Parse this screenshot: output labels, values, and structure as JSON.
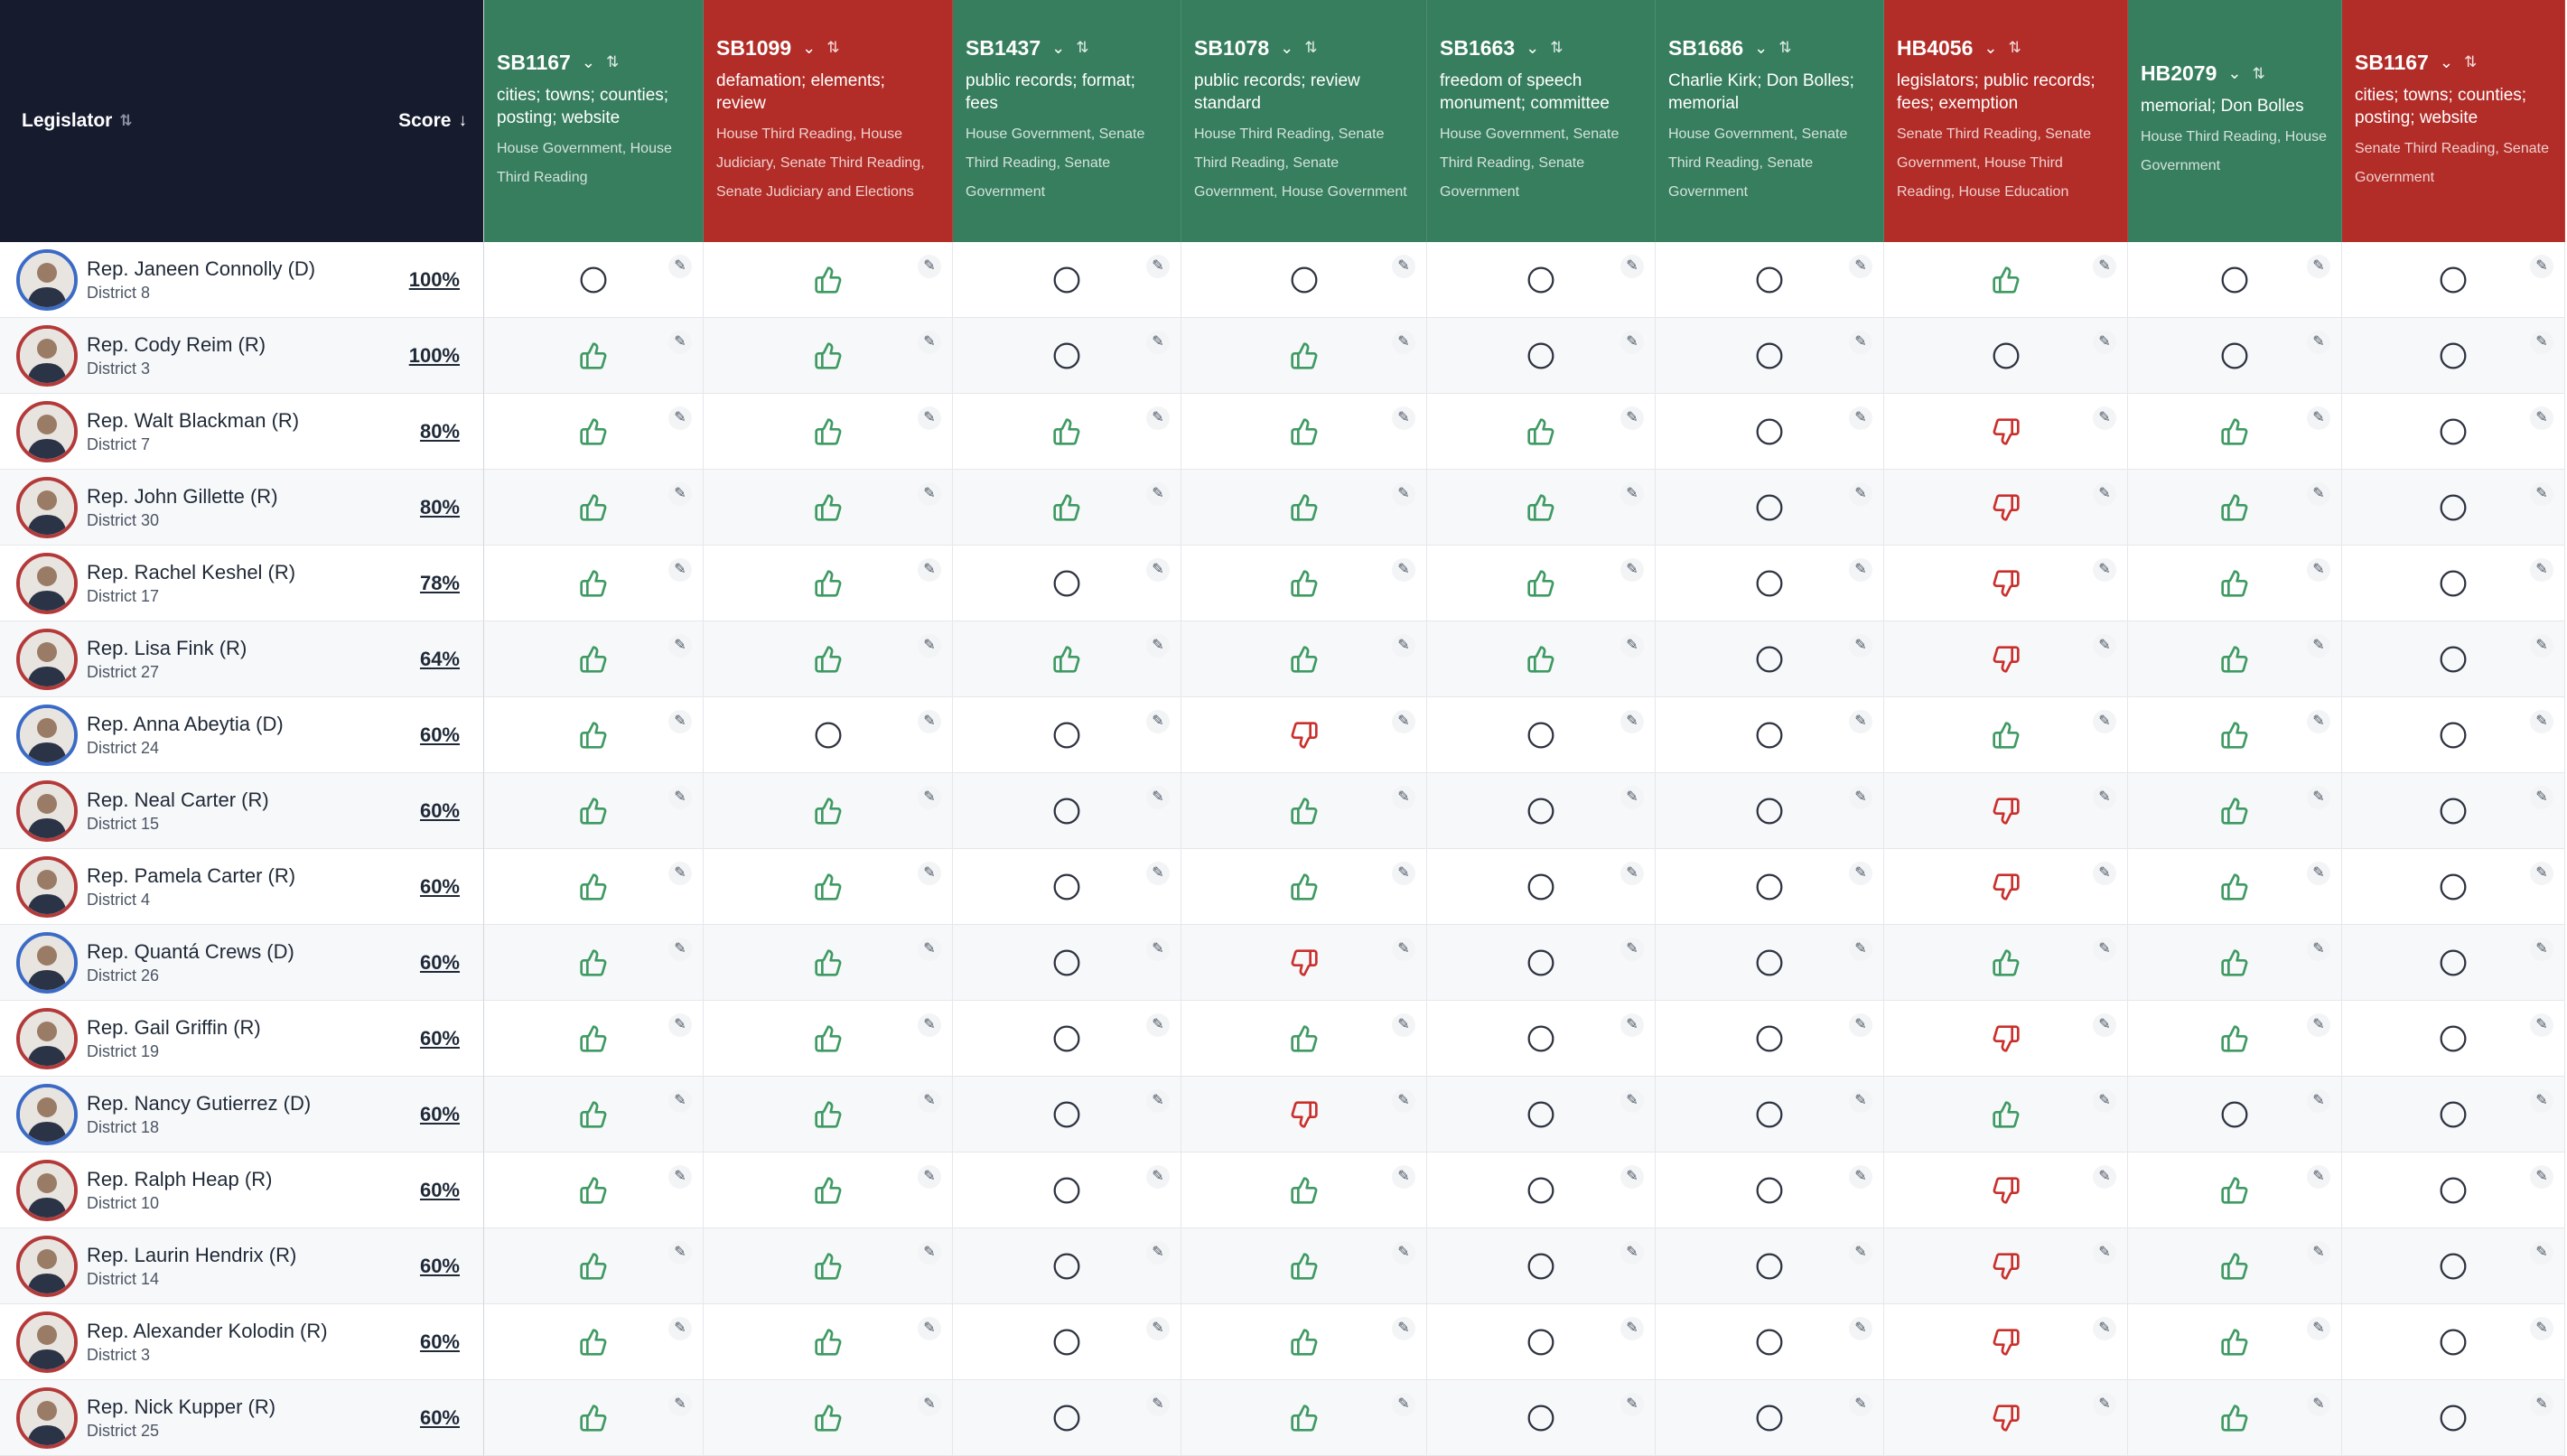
{
  "header": {
    "legislator_label": "Legislator",
    "score_label": "Score",
    "sort_icon": "sort-icon",
    "sort_desc_icon": "arrow-down-icon"
  },
  "bills": [
    {
      "id": "SB1167",
      "color": "yes",
      "desc": "cities; towns; counties; posting; website",
      "actions": "House Government, House Third Reading"
    },
    {
      "id": "SB1099",
      "color": "no",
      "desc": "defamation; elements; review",
      "actions": "House Third Reading, House Judiciary, Senate Third Reading, Senate Judiciary and Elections"
    },
    {
      "id": "SB1437",
      "color": "yes",
      "desc": "public records; format; fees",
      "actions": "House Government, Senate Third Reading, Senate Government"
    },
    {
      "id": "SB1078",
      "color": "yes",
      "desc": "public records; review standard",
      "actions": "House Third Reading, Senate Third Reading, Senate Government, House Government"
    },
    {
      "id": "SB1663",
      "color": "yes",
      "desc": "freedom of speech monument; committee",
      "actions": "House Government, Senate Third Reading, Senate Government"
    },
    {
      "id": "SB1686",
      "color": "yes",
      "desc": "Charlie Kirk; Don Bolles; memorial",
      "actions": "House Government, Senate Third Reading, Senate Government"
    },
    {
      "id": "HB4056",
      "color": "no",
      "desc": "legislators; public records; fees; exemption",
      "actions": "Senate Third Reading, Senate Government, House Third Reading, House Education"
    },
    {
      "id": "HB2079",
      "color": "yes",
      "desc": "memorial; Don Bolles",
      "actions": "House Third Reading, House Government"
    },
    {
      "id": "SB1167",
      "color": "no",
      "desc": "cities; towns; counties; posting; website",
      "actions": "Senate Third Reading, Senate Government"
    }
  ],
  "legislators": [
    {
      "name": "Rep. Janeen Connolly (D)",
      "district": "District 8",
      "score": "100%",
      "party": "D",
      "votes": [
        "none",
        "up",
        "none",
        "none",
        "none",
        "none",
        "up",
        "none",
        "none"
      ]
    },
    {
      "name": "Rep. Cody Reim (R)",
      "district": "District 3",
      "score": "100%",
      "party": "R",
      "votes": [
        "up",
        "up",
        "none",
        "up",
        "none",
        "none",
        "none",
        "none",
        "none"
      ]
    },
    {
      "name": "Rep. Walt Blackman (R)",
      "district": "District 7",
      "score": "80%",
      "party": "R",
      "votes": [
        "up",
        "up",
        "up",
        "up",
        "up",
        "none",
        "down",
        "up",
        "none"
      ]
    },
    {
      "name": "Rep. John Gillette (R)",
      "district": "District 30",
      "score": "80%",
      "party": "R",
      "votes": [
        "up",
        "up",
        "up",
        "up",
        "up",
        "none",
        "down",
        "up",
        "none"
      ]
    },
    {
      "name": "Rep. Rachel Keshel (R)",
      "district": "District 17",
      "score": "78%",
      "party": "R",
      "votes": [
        "up",
        "up",
        "none",
        "up",
        "up",
        "none",
        "down",
        "up",
        "none"
      ]
    },
    {
      "name": "Rep. Lisa Fink (R)",
      "district": "District 27",
      "score": "64%",
      "party": "R",
      "votes": [
        "up",
        "up",
        "up",
        "up",
        "up",
        "none",
        "down",
        "up",
        "none"
      ]
    },
    {
      "name": "Rep. Anna Abeytia (D)",
      "district": "District 24",
      "score": "60%",
      "party": "D",
      "votes": [
        "up",
        "none",
        "none",
        "down",
        "none",
        "none",
        "up",
        "up",
        "none"
      ]
    },
    {
      "name": "Rep. Neal Carter (R)",
      "district": "District 15",
      "score": "60%",
      "party": "R",
      "votes": [
        "up",
        "up",
        "none",
        "up",
        "none",
        "none",
        "down",
        "up",
        "none"
      ]
    },
    {
      "name": "Rep. Pamela Carter (R)",
      "district": "District 4",
      "score": "60%",
      "party": "R",
      "votes": [
        "up",
        "up",
        "none",
        "up",
        "none",
        "none",
        "down",
        "up",
        "none"
      ]
    },
    {
      "name": "Rep. Quantá Crews (D)",
      "district": "District 26",
      "score": "60%",
      "party": "D",
      "votes": [
        "up",
        "up",
        "none",
        "down",
        "none",
        "none",
        "up",
        "up",
        "none"
      ]
    },
    {
      "name": "Rep. Gail Griffin (R)",
      "district": "District 19",
      "score": "60%",
      "party": "R",
      "votes": [
        "up",
        "up",
        "none",
        "up",
        "none",
        "none",
        "down",
        "up",
        "none"
      ]
    },
    {
      "name": "Rep. Nancy Gutierrez (D)",
      "district": "District 18",
      "score": "60%",
      "party": "D",
      "votes": [
        "up",
        "up",
        "none",
        "down",
        "none",
        "none",
        "up",
        "none",
        "none"
      ]
    },
    {
      "name": "Rep. Ralph Heap (R)",
      "district": "District 10",
      "score": "60%",
      "party": "R",
      "votes": [
        "up",
        "up",
        "none",
        "up",
        "none",
        "none",
        "down",
        "up",
        "none"
      ]
    },
    {
      "name": "Rep. Laurin Hendrix (R)",
      "district": "District 14",
      "score": "60%",
      "party": "R",
      "votes": [
        "up",
        "up",
        "none",
        "up",
        "none",
        "none",
        "down",
        "up",
        "none"
      ]
    },
    {
      "name": "Rep. Alexander Kolodin (R)",
      "district": "District 3",
      "score": "60%",
      "party": "R",
      "votes": [
        "up",
        "up",
        "none",
        "up",
        "none",
        "none",
        "down",
        "up",
        "none"
      ]
    },
    {
      "name": "Rep. Nick Kupper (R)",
      "district": "District 25",
      "score": "60%",
      "party": "R",
      "votes": [
        "up",
        "up",
        "none",
        "up",
        "none",
        "none",
        "down",
        "up",
        "none"
      ]
    }
  ],
  "colors": {
    "header_dark": "#161b2e",
    "bill_yes": "#377e5e",
    "bill_no": "#b32d28",
    "vote_up": "#3e9a62",
    "vote_down": "#c9302c",
    "vote_none": "#2d3340",
    "republican_ring": "#b43a3a",
    "democrat_ring": "#3b6bc5"
  },
  "icons": {
    "vote_up": "thumbs-up-icon",
    "vote_down": "thumbs-down-icon",
    "vote_none": "empty-circle-icon",
    "edit": "pencil-icon",
    "bill_menu": "chevron-down-icon",
    "avatar": "person-photo-icon"
  }
}
